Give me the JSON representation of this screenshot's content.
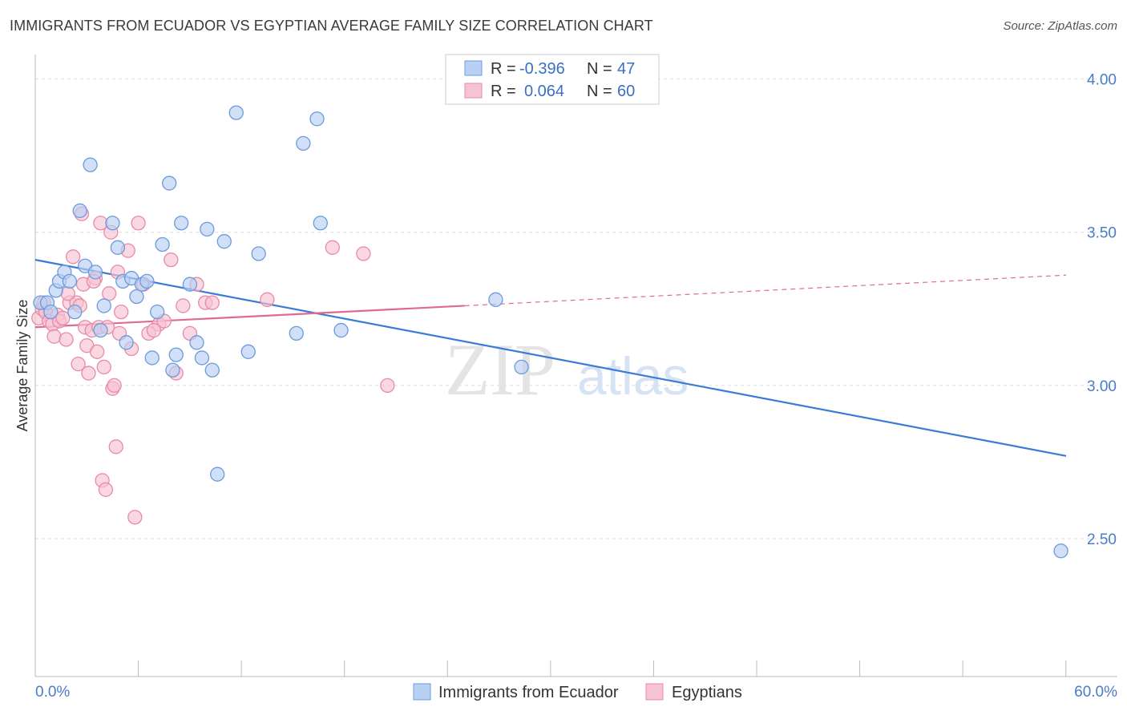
{
  "header": {
    "title": "IMMIGRANTS FROM ECUADOR VS EGYPTIAN AVERAGE FAMILY SIZE CORRELATION CHART",
    "source": "Source: ZipAtlas.com"
  },
  "watermark": {
    "zip": "ZIP",
    "atlas": "atlas"
  },
  "stats_legend": {
    "r_label": "R =",
    "n_label": "N =",
    "rows": [
      {
        "series": "Immigrants from Ecuador",
        "r": "-0.396",
        "n": "47"
      },
      {
        "series": "Egyptians",
        "r": "0.064",
        "n": "60"
      }
    ]
  },
  "colors": {
    "blue_fill": "#b8d0f2",
    "blue_stroke": "#6b9bdc",
    "blue_line": "#3a7bd5",
    "pink_fill": "#f7c3d3",
    "pink_stroke": "#e88aa8",
    "pink_line": "#e06a93",
    "grid": "#dddddd",
    "axis_text": "#4a7cc9"
  },
  "chart_data": {
    "type": "scatter",
    "title": "IMMIGRANTS FROM ECUADOR VS EGYPTIAN AVERAGE FAMILY SIZE CORRELATION CHART",
    "xlabel": "",
    "ylabel": "Average Family Size",
    "xlim": [
      0,
      60
    ],
    "ylim": [
      2.05,
      4.08
    ],
    "x_tick_labels": [
      "0.0%",
      "60.0%"
    ],
    "y_ticks": [
      2.5,
      3.0,
      3.5,
      4.0
    ],
    "y_tick_labels": [
      "2.50",
      "3.00",
      "3.50",
      "4.00"
    ],
    "grid": true,
    "legend_placement": "top-center / bottom",
    "series": [
      {
        "name": "Immigrants from Ecuador",
        "color": "#6b9bdc",
        "trend": {
          "x": [
            0,
            60
          ],
          "y": [
            3.41,
            2.77
          ],
          "style": "solid"
        },
        "points": [
          [
            0.3,
            3.27
          ],
          [
            0.7,
            3.27
          ],
          [
            0.9,
            3.24
          ],
          [
            1.2,
            3.31
          ],
          [
            1.4,
            3.34
          ],
          [
            1.7,
            3.37
          ],
          [
            2.0,
            3.34
          ],
          [
            2.3,
            3.24
          ],
          [
            2.6,
            3.57
          ],
          [
            2.9,
            3.39
          ],
          [
            3.2,
            3.72
          ],
          [
            3.5,
            3.37
          ],
          [
            3.8,
            3.18
          ],
          [
            4.0,
            3.26
          ],
          [
            4.5,
            3.53
          ],
          [
            4.8,
            3.45
          ],
          [
            5.1,
            3.34
          ],
          [
            5.3,
            3.14
          ],
          [
            5.6,
            3.35
          ],
          [
            5.9,
            3.29
          ],
          [
            6.2,
            3.33
          ],
          [
            6.5,
            3.34
          ],
          [
            6.8,
            3.09
          ],
          [
            7.1,
            3.24
          ],
          [
            7.4,
            3.46
          ],
          [
            7.8,
            3.66
          ],
          [
            8.0,
            3.05
          ],
          [
            8.2,
            3.1
          ],
          [
            8.5,
            3.53
          ],
          [
            9.0,
            3.33
          ],
          [
            9.4,
            3.14
          ],
          [
            9.7,
            3.09
          ],
          [
            10.0,
            3.51
          ],
          [
            10.3,
            3.05
          ],
          [
            10.6,
            2.71
          ],
          [
            11.0,
            3.47
          ],
          [
            11.7,
            3.89
          ],
          [
            12.4,
            3.11
          ],
          [
            13.0,
            3.43
          ],
          [
            15.2,
            3.17
          ],
          [
            15.6,
            3.79
          ],
          [
            16.4,
            3.87
          ],
          [
            16.6,
            3.53
          ],
          [
            17.8,
            3.18
          ],
          [
            26.8,
            3.28
          ],
          [
            28.3,
            3.06
          ],
          [
            59.7,
            2.46
          ]
        ]
      },
      {
        "name": "Egyptians",
        "color": "#e88aa8",
        "trend": {
          "x": [
            0,
            25,
            60
          ],
          "y": [
            3.19,
            3.26,
            3.36
          ],
          "style": "solid-then-dashed",
          "solid_until": 25
        },
        "points": [
          [
            0.2,
            3.22
          ],
          [
            0.4,
            3.25
          ],
          [
            0.6,
            3.24
          ],
          [
            0.8,
            3.21
          ],
          [
            1.0,
            3.2
          ],
          [
            1.1,
            3.16
          ],
          [
            1.3,
            3.23
          ],
          [
            1.4,
            3.21
          ],
          [
            1.6,
            3.22
          ],
          [
            1.8,
            3.15
          ],
          [
            2.0,
            3.27
          ],
          [
            2.2,
            3.42
          ],
          [
            2.4,
            3.27
          ],
          [
            2.5,
            3.07
          ],
          [
            2.7,
            3.56
          ],
          [
            2.8,
            3.33
          ],
          [
            2.9,
            3.19
          ],
          [
            3.0,
            3.13
          ],
          [
            3.1,
            3.04
          ],
          [
            3.3,
            3.18
          ],
          [
            3.5,
            3.35
          ],
          [
            3.6,
            3.11
          ],
          [
            3.7,
            3.19
          ],
          [
            3.8,
            3.53
          ],
          [
            3.9,
            2.69
          ],
          [
            4.0,
            3.06
          ],
          [
            4.1,
            2.66
          ],
          [
            4.3,
            3.3
          ],
          [
            4.4,
            3.5
          ],
          [
            4.5,
            2.99
          ],
          [
            4.6,
            3.0
          ],
          [
            4.7,
            2.8
          ],
          [
            4.8,
            3.37
          ],
          [
            4.9,
            3.17
          ],
          [
            5.0,
            3.24
          ],
          [
            5.4,
            3.44
          ],
          [
            5.6,
            3.12
          ],
          [
            5.8,
            2.57
          ],
          [
            6.0,
            3.53
          ],
          [
            6.3,
            3.33
          ],
          [
            6.6,
            3.17
          ],
          [
            7.2,
            3.2
          ],
          [
            7.5,
            3.21
          ],
          [
            7.9,
            3.41
          ],
          [
            8.2,
            3.04
          ],
          [
            8.6,
            3.26
          ],
          [
            9.0,
            3.17
          ],
          [
            9.4,
            3.33
          ],
          [
            9.9,
            3.27
          ],
          [
            10.3,
            3.27
          ],
          [
            13.5,
            3.28
          ],
          [
            17.3,
            3.45
          ],
          [
            19.1,
            3.43
          ],
          [
            20.5,
            3.0
          ],
          [
            0.5,
            3.27
          ],
          [
            1.9,
            3.3
          ],
          [
            2.6,
            3.26
          ],
          [
            3.4,
            3.34
          ],
          [
            6.9,
            3.18
          ],
          [
            4.2,
            3.19
          ]
        ]
      }
    ]
  },
  "bottom_legend": [
    {
      "label": "Immigrants from Ecuador"
    },
    {
      "label": "Egyptians"
    }
  ]
}
